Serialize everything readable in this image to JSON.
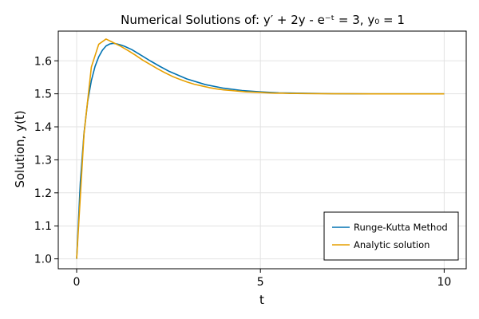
{
  "chart_data": {
    "type": "line",
    "title": "Numerical Solutions of: y′ + 2y - e⁻ᵗ = 3, y₀ = 1",
    "xlabel": "t",
    "ylabel": "Solution, y(t)",
    "xlim": [
      -0.5,
      10.6
    ],
    "ylim": [
      0.97,
      1.69
    ],
    "xticks": [
      0,
      5,
      10
    ],
    "xtick_labels": [
      "0",
      "5",
      "10"
    ],
    "yticks": [
      1.0,
      1.1,
      1.2,
      1.3,
      1.4,
      1.5,
      1.6
    ],
    "ytick_labels": [
      "1.0",
      "1.1",
      "1.2",
      "1.3",
      "1.4",
      "1.5",
      "1.6"
    ],
    "grid": true,
    "legend_position": "bottom-right",
    "series": [
      {
        "name": "Runge-Kutta Method",
        "color": "#0072b2",
        "x": [
          0,
          0.1,
          0.2,
          0.3,
          0.4,
          0.5,
          0.6,
          0.7,
          0.8,
          0.9,
          1.0,
          1.1,
          1.2,
          1.3,
          1.5,
          1.75,
          2.0,
          2.25,
          2.5,
          3.0,
          3.5,
          4.0,
          4.5,
          5.0,
          5.5,
          6.0,
          7.0,
          8.0,
          9.0,
          10.0
        ],
        "y": [
          1.0,
          1.232,
          1.381,
          1.477,
          1.54,
          1.583,
          1.612,
          1.632,
          1.645,
          1.651,
          1.653,
          1.651,
          1.648,
          1.644,
          1.634,
          1.617,
          1.6,
          1.584,
          1.569,
          1.545,
          1.528,
          1.517,
          1.51,
          1.506,
          1.503,
          1.502,
          1.5003,
          1.5,
          1.5,
          1.5
        ]
      },
      {
        "name": "Analytic solution",
        "color": "#e69f00",
        "x": [
          0,
          0.2,
          0.4,
          0.6,
          0.8,
          1.0,
          1.2,
          1.4,
          1.6,
          1.8,
          2.0,
          2.2,
          2.4,
          2.6,
          2.8,
          3.0,
          3.2,
          3.4,
          3.6,
          3.8,
          4.0,
          4.2,
          4.4,
          4.6,
          4.8,
          5.0,
          5.2,
          5.4,
          5.6,
          5.8,
          6.0,
          6.5,
          7.0,
          7.5,
          8.0,
          8.5,
          9.0,
          9.5,
          10.0
        ],
        "y": [
          1.0,
          1.378,
          1.581,
          1.65,
          1.666,
          1.655,
          1.644,
          1.631,
          1.617,
          1.602,
          1.589,
          1.576,
          1.564,
          1.553,
          1.544,
          1.536,
          1.529,
          1.524,
          1.519,
          1.515,
          1.512,
          1.51,
          1.508,
          1.506,
          1.505,
          1.504,
          1.503,
          1.502,
          1.502,
          1.501,
          1.501,
          1.5005,
          1.5002,
          1.5001,
          1.5,
          1.5,
          1.5,
          1.5,
          1.5
        ]
      }
    ]
  }
}
